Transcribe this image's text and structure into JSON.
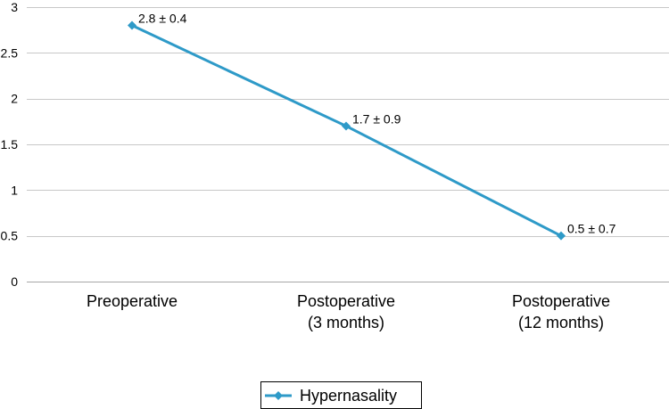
{
  "chart_data": {
    "type": "line",
    "title": "",
    "xlabel": "",
    "ylabel": "",
    "categories": [
      [
        "Preoperative"
      ],
      [
        "Postoperative",
        "(3 months)"
      ],
      [
        "Postoperative",
        "(12 months)"
      ]
    ],
    "ylim": [
      0,
      3
    ],
    "yticks": [
      0,
      0.5,
      1,
      1.5,
      2,
      2.5,
      3
    ],
    "ytick_labels": [
      "0",
      "0.5",
      "1",
      "1.5",
      "2",
      "2.5",
      "3"
    ],
    "grid": true,
    "legend_position": "bottom",
    "series": [
      {
        "name": "Hypernasality",
        "color": "#2E9AC8",
        "marker": "diamond",
        "values": [
          2.8,
          1.7,
          0.5
        ],
        "data_labels": [
          "2.8 ± 0.4",
          "1.7 ± 0.9",
          "0.5 ± 0.7"
        ]
      }
    ]
  }
}
